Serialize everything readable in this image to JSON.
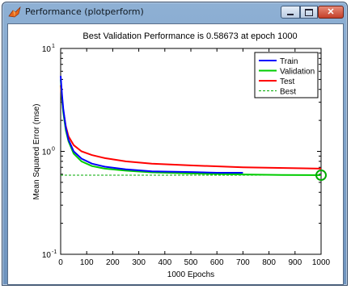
{
  "window": {
    "title": "Performance (plotperform)",
    "controls": {
      "minimize_icon": "minimize-icon",
      "maximize_icon": "maximize-icon",
      "close_icon": "close-icon"
    }
  },
  "chart_data": {
    "type": "line",
    "title": "Best Validation Performance is 0.58673 at epoch 1000",
    "xlabel": "1000 Epochs",
    "ylabel": "Mean Squared Error  (mse)",
    "xlim": [
      0,
      1000
    ],
    "ylim": [
      0.1,
      10
    ],
    "yscale": "log",
    "xticks": [
      "0",
      "100",
      "200",
      "300",
      "400",
      "500",
      "600",
      "700",
      "800",
      "900",
      "1000"
    ],
    "yticks": [
      {
        "value": 10,
        "base": "10",
        "exp": "1"
      },
      {
        "value": 1,
        "base": "10",
        "exp": "0"
      },
      {
        "value": 0.1,
        "base": "10",
        "exp": "-1"
      }
    ],
    "legend_position": "top-right",
    "series": [
      {
        "name": "Train",
        "color": "#0000ff",
        "style": "solid",
        "points": [
          [
            0,
            5.4
          ],
          [
            5,
            3.6
          ],
          [
            10,
            2.6
          ],
          [
            20,
            1.7
          ],
          [
            30,
            1.3
          ],
          [
            50,
            1.0
          ],
          [
            80,
            0.85
          ],
          [
            120,
            0.76
          ],
          [
            170,
            0.71
          ],
          [
            250,
            0.67
          ],
          [
            350,
            0.64
          ],
          [
            500,
            0.63
          ],
          [
            600,
            0.62
          ],
          [
            700,
            0.62
          ]
        ]
      },
      {
        "name": "Validation",
        "color": "#00cc00",
        "style": "solid",
        "points": [
          [
            0,
            5.0
          ],
          [
            5,
            3.3
          ],
          [
            10,
            2.4
          ],
          [
            20,
            1.6
          ],
          [
            30,
            1.25
          ],
          [
            50,
            0.95
          ],
          [
            80,
            0.8
          ],
          [
            120,
            0.72
          ],
          [
            170,
            0.68
          ],
          [
            250,
            0.65
          ],
          [
            350,
            0.625
          ],
          [
            500,
            0.61
          ],
          [
            700,
            0.597
          ],
          [
            850,
            0.59
          ],
          [
            1000,
            0.5867
          ]
        ]
      },
      {
        "name": "Test",
        "color": "#ff0000",
        "style": "solid",
        "points": [
          [
            0,
            4.4
          ],
          [
            5,
            3.2
          ],
          [
            10,
            2.5
          ],
          [
            20,
            1.75
          ],
          [
            30,
            1.4
          ],
          [
            50,
            1.15
          ],
          [
            80,
            1.0
          ],
          [
            120,
            0.92
          ],
          [
            170,
            0.86
          ],
          [
            250,
            0.8
          ],
          [
            350,
            0.76
          ],
          [
            500,
            0.73
          ],
          [
            700,
            0.7
          ],
          [
            1000,
            0.68
          ]
        ]
      },
      {
        "name": "Best",
        "color": "#00aa00",
        "style": "dashed",
        "points": [
          [
            0,
            0.5867
          ],
          [
            1000,
            0.5867
          ]
        ]
      }
    ],
    "best_marker": {
      "x": 1000,
      "y": 0.5867,
      "color": "#00aa00",
      "shape": "circle"
    },
    "grid": false
  }
}
